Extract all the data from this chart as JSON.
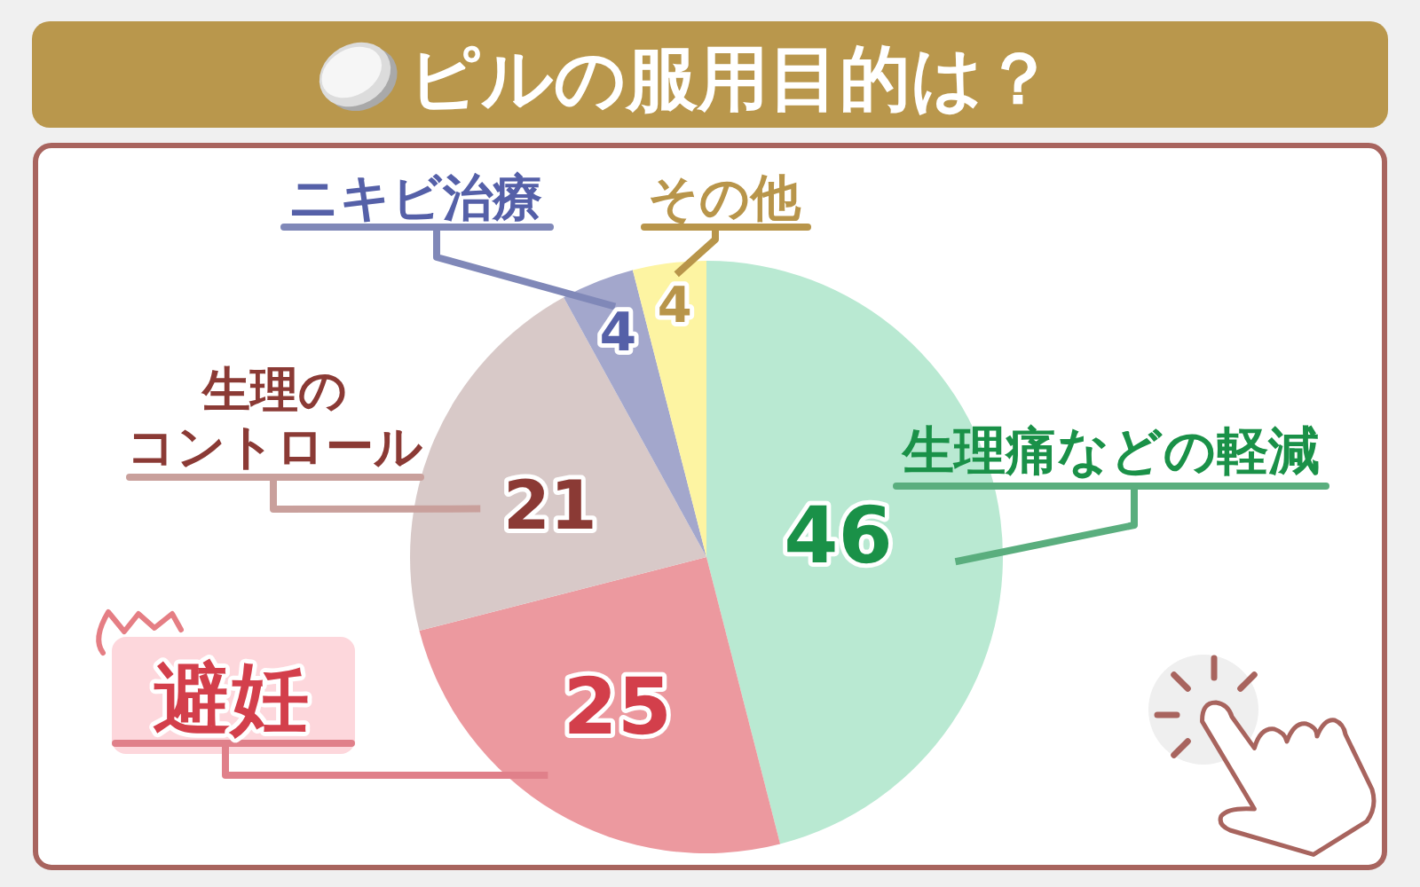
{
  "chart_data": {
    "type": "pie",
    "title": "ピルの服用目的は？",
    "categories": [
      "生理痛などの軽減",
      "避妊",
      "生理のコントロール",
      "ニキビ治療",
      "その他"
    ],
    "values": [
      46,
      25,
      21,
      4,
      4
    ],
    "colors": [
      "#b9e9d2",
      "#ec999f",
      "#d8c9c8",
      "#a3a7cc",
      "#fdf4a2"
    ],
    "data_labels": true
  }
}
